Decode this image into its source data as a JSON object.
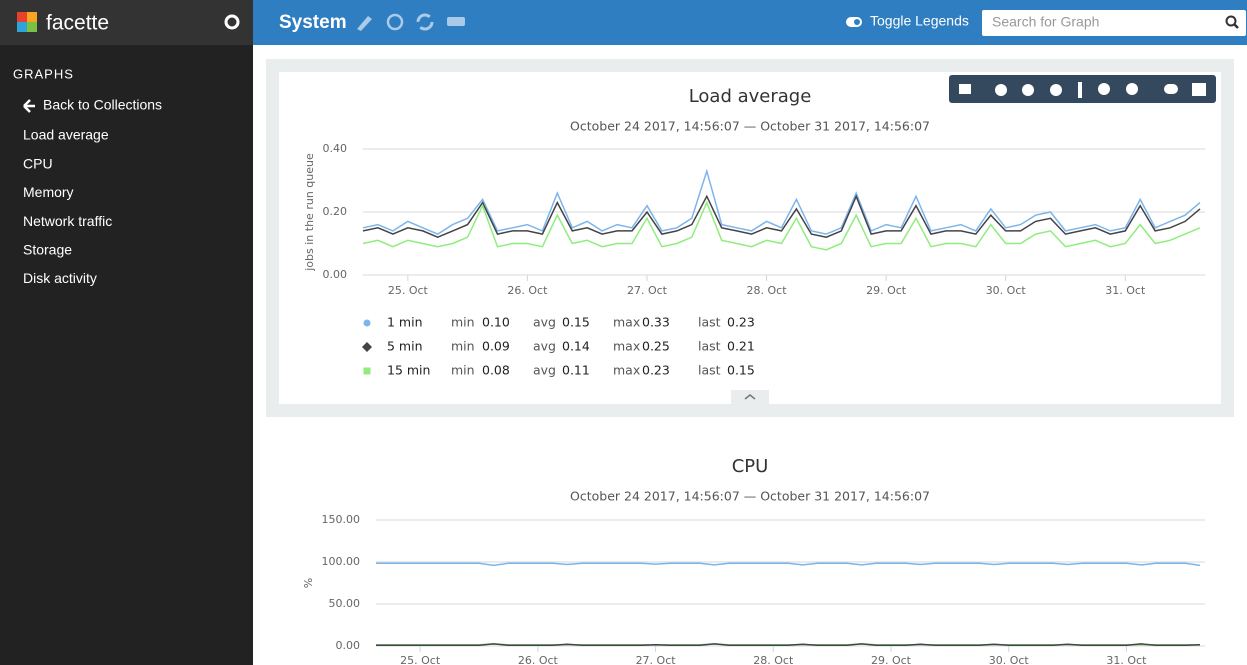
{
  "app": {
    "name": "facette"
  },
  "header": {
    "title": "System",
    "toggle_legends": "Toggle Legends",
    "search_placeholder": "Search for Graph"
  },
  "sidebar": {
    "section": "GRAPHS",
    "back": "Back to Collections",
    "items": [
      "Load average",
      "CPU",
      "Memory",
      "Network traffic",
      "Storage",
      "Disk activity"
    ]
  },
  "chart_data": [
    {
      "type": "line",
      "title": "Load average",
      "subtitle": "October 24 2017, 14:56:07 — October 31 2017, 14:56:07",
      "y_label": "jobs in the run queue",
      "categories": [
        null,
        null,
        null,
        "25. Oct",
        null,
        null,
        null,
        null,
        null,
        null,
        null,
        "26. Oct",
        null,
        null,
        null,
        null,
        null,
        null,
        null,
        "27. Oct",
        null,
        null,
        null,
        null,
        null,
        null,
        null,
        "28. Oct",
        null,
        null,
        null,
        null,
        null,
        null,
        null,
        "29. Oct",
        null,
        null,
        null,
        null,
        null,
        null,
        null,
        "30. Oct",
        null,
        null,
        null,
        null,
        null,
        null,
        null,
        "31. Oct",
        null,
        null,
        null,
        null,
        null
      ],
      "ylim": [
        0,
        0.4
      ],
      "yticks": [
        {
          "value": 0,
          "label": "0.00"
        },
        {
          "value": 0.2,
          "label": "0.20"
        },
        {
          "value": 0.4,
          "label": "0.40"
        }
      ],
      "grid": true,
      "stat_names": [
        "min",
        "avg",
        "max",
        "last"
      ],
      "series": [
        {
          "name": "1 min",
          "color": "#7cb5ec",
          "marker": "circle",
          "stats": [
            0.1,
            0.15,
            0.33,
            0.23
          ],
          "stats_labels": [
            "0.10",
            "0.15",
            "0.33",
            "0.23"
          ],
          "values": [
            0.15,
            0.16,
            0.14,
            0.17,
            0.15,
            0.13,
            0.16,
            0.18,
            0.24,
            0.14,
            0.15,
            0.16,
            0.14,
            0.26,
            0.15,
            0.17,
            0.14,
            0.16,
            0.15,
            0.22,
            0.14,
            0.15,
            0.18,
            0.33,
            0.16,
            0.15,
            0.14,
            0.17,
            0.15,
            0.24,
            0.14,
            0.13,
            0.15,
            0.26,
            0.14,
            0.16,
            0.15,
            0.25,
            0.14,
            0.15,
            0.16,
            0.14,
            0.21,
            0.15,
            0.16,
            0.19,
            0.2,
            0.14,
            0.15,
            0.16,
            0.14,
            0.15,
            0.24,
            0.15,
            0.17,
            0.19,
            0.23
          ]
        },
        {
          "name": "5 min",
          "color": "#434348",
          "marker": "diamond",
          "stats": [
            0.09,
            0.14,
            0.25,
            0.21
          ],
          "stats_labels": [
            "0.09",
            "0.14",
            "0.25",
            "0.21"
          ],
          "values": [
            0.14,
            0.15,
            0.13,
            0.15,
            0.14,
            0.12,
            0.14,
            0.16,
            0.23,
            0.13,
            0.14,
            0.14,
            0.13,
            0.23,
            0.14,
            0.15,
            0.13,
            0.14,
            0.14,
            0.2,
            0.13,
            0.14,
            0.16,
            0.25,
            0.15,
            0.14,
            0.13,
            0.15,
            0.14,
            0.21,
            0.13,
            0.12,
            0.14,
            0.25,
            0.13,
            0.14,
            0.14,
            0.22,
            0.13,
            0.14,
            0.14,
            0.13,
            0.19,
            0.14,
            0.14,
            0.17,
            0.18,
            0.13,
            0.14,
            0.15,
            0.13,
            0.14,
            0.22,
            0.14,
            0.15,
            0.17,
            0.21
          ]
        },
        {
          "name": "15 min",
          "color": "#90ed7d",
          "marker": "square",
          "stats": [
            0.08,
            0.11,
            0.23,
            0.15
          ],
          "stats_labels": [
            "0.08",
            "0.11",
            "0.23",
            "0.15"
          ],
          "values": [
            0.1,
            0.11,
            0.09,
            0.11,
            0.1,
            0.09,
            0.1,
            0.12,
            0.22,
            0.09,
            0.1,
            0.1,
            0.09,
            0.19,
            0.1,
            0.11,
            0.09,
            0.1,
            0.1,
            0.18,
            0.09,
            0.1,
            0.12,
            0.23,
            0.11,
            0.1,
            0.09,
            0.11,
            0.1,
            0.18,
            0.09,
            0.08,
            0.1,
            0.19,
            0.09,
            0.1,
            0.1,
            0.18,
            0.09,
            0.1,
            0.1,
            0.09,
            0.16,
            0.1,
            0.1,
            0.13,
            0.14,
            0.09,
            0.1,
            0.11,
            0.09,
            0.1,
            0.16,
            0.1,
            0.11,
            0.13,
            0.15
          ]
        }
      ]
    },
    {
      "type": "line",
      "title": "CPU",
      "subtitle": "October 24 2017, 14:56:07 — October 31 2017, 14:56:07",
      "y_label": "%",
      "categories": [
        null,
        null,
        null,
        "25. Oct",
        null,
        null,
        null,
        null,
        null,
        null,
        null,
        "26. Oct",
        null,
        null,
        null,
        null,
        null,
        null,
        null,
        "27. Oct",
        null,
        null,
        null,
        null,
        null,
        null,
        null,
        "28. Oct",
        null,
        null,
        null,
        null,
        null,
        null,
        null,
        "29. Oct",
        null,
        null,
        null,
        null,
        null,
        null,
        null,
        "30. Oct",
        null,
        null,
        null,
        null,
        null,
        null,
        null,
        "31. Oct",
        null,
        null,
        null,
        null,
        null
      ],
      "ylim": [
        0,
        150
      ],
      "yticks": [
        {
          "value": 0,
          "label": "0.00"
        },
        {
          "value": 50,
          "label": "50.00"
        },
        {
          "value": 100,
          "label": "100.00"
        },
        {
          "value": 150,
          "label": "150.00"
        }
      ],
      "grid": true,
      "series": [
        {
          "color": "#7cb5ec",
          "values": [
            98.5,
            98.5,
            98.5,
            98.5,
            98.5,
            98.5,
            98.5,
            98.5,
            96,
            98.5,
            98.5,
            98.5,
            98.5,
            97,
            98.5,
            98.5,
            98.5,
            98.5,
            98.5,
            97.5,
            98.5,
            98.5,
            98.5,
            96.5,
            98.5,
            98.5,
            98.5,
            98.5,
            98.5,
            96.5,
            98.5,
            98.5,
            98.5,
            96.5,
            98.5,
            98.5,
            98.5,
            97,
            98.5,
            98.5,
            98.5,
            98.5,
            97,
            98.5,
            98.5,
            98.5,
            98.5,
            97,
            98.5,
            98.5,
            98.5,
            98.5,
            96.5,
            98.5,
            98.5,
            98.5,
            96
          ]
        },
        {
          "color": "#90ed7d",
          "values": [
            1.5,
            1.5,
            1.5,
            1.5,
            1.5,
            1.5,
            1.5,
            1.5,
            2.5,
            1.5,
            1.5,
            1.5,
            1.5,
            1.5,
            1.5,
            1.5,
            1.5,
            1.5,
            1.5,
            1.5,
            1.5,
            1.5,
            1.5,
            2.5,
            1.5,
            1.5,
            1.5,
            1.5,
            1.5,
            1.5,
            1.5,
            1.5,
            1.5,
            2.5,
            1.5,
            1.5,
            1.5,
            1.5,
            1.5,
            1.5,
            1.5,
            1.5,
            1.5,
            1.5,
            1.5,
            1.5,
            1.5,
            1.5,
            1.5,
            1.5,
            1.5,
            1.5,
            1.5,
            1.5,
            1.5,
            1.5,
            1.5
          ]
        },
        {
          "color": "#434348",
          "values": [
            0.8,
            0.8,
            0.8,
            0.8,
            0.8,
            0.8,
            0.8,
            0.8,
            2.5,
            0.8,
            0.8,
            0.8,
            0.8,
            2,
            0.8,
            0.8,
            0.8,
            0.8,
            0.8,
            1.5,
            0.8,
            0.8,
            0.8,
            2.5,
            0.8,
            0.8,
            0.8,
            0.8,
            0.8,
            2,
            0.8,
            0.8,
            0.8,
            2.5,
            0.8,
            0.8,
            0.8,
            2,
            0.8,
            0.8,
            0.8,
            0.8,
            2,
            0.8,
            0.8,
            0.8,
            0.8,
            2,
            0.8,
            0.8,
            0.8,
            0.8,
            2.5,
            0.8,
            0.8,
            0.8,
            1.5
          ]
        }
      ]
    }
  ]
}
